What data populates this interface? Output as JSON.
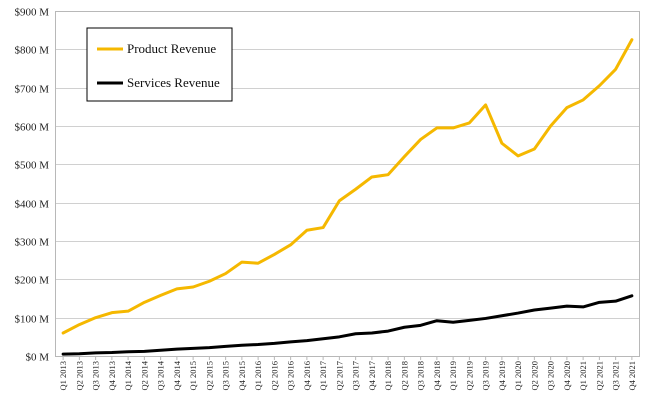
{
  "chart_data": {
    "type": "line",
    "title": "",
    "xlabel": "",
    "ylabel": "",
    "ylim": [
      0,
      900
    ],
    "y_ticks": [
      0,
      100,
      200,
      300,
      400,
      500,
      600,
      700,
      800,
      900
    ],
    "y_tick_labels": [
      "$0 M",
      "$100 M",
      "$200 M",
      "$300 M",
      "$400 M",
      "$500 M",
      "$600 M",
      "$700 M",
      "$800 M",
      "$900 M"
    ],
    "grid": "horizontal",
    "legend_position": "top-left",
    "categories": [
      "Q1 2013",
      "Q2 2013",
      "Q3 2013",
      "Q4 2013",
      "Q1 2014",
      "Q2 2014",
      "Q3 2014",
      "Q4 2014",
      "Q1 2015",
      "Q2 2015",
      "Q3 2015",
      "Q4 2015",
      "Q1 2016",
      "Q2 2016",
      "Q3 2016",
      "Q4 2016",
      "Q1 2017",
      "Q2 2017",
      "Q3 2017",
      "Q4 2017",
      "Q1 2018",
      "Q2 2018",
      "Q3 2018",
      "Q4 2018",
      "Q1 2019",
      "Q2 2019",
      "Q3 2019",
      "Q4 2019",
      "Q1 2020",
      "Q2 2020",
      "Q3 2020",
      "Q4 2020",
      "Q1 2021",
      "Q2 2021",
      "Q3 2021",
      "Q4 2021"
    ],
    "series": [
      {
        "name": "Product Revenue",
        "color": "#f5b800",
        "values": [
          60,
          82,
          100,
          113,
          117,
          140,
          158,
          175,
          180,
          195,
          215,
          245,
          242,
          265,
          290,
          328,
          335,
          405,
          435,
          467,
          473,
          520,
          565,
          595,
          595,
          608,
          655,
          555,
          522,
          540,
          600,
          648,
          668,
          705,
          748,
          825
        ]
      },
      {
        "name": "Services Revenue",
        "color": "#000000",
        "values": [
          5,
          6,
          8,
          9,
          11,
          12,
          15,
          18,
          20,
          22,
          25,
          28,
          30,
          33,
          37,
          40,
          45,
          50,
          58,
          60,
          65,
          75,
          80,
          92,
          88,
          93,
          98,
          105,
          112,
          120,
          125,
          130,
          128,
          140,
          143,
          157
        ]
      }
    ]
  }
}
